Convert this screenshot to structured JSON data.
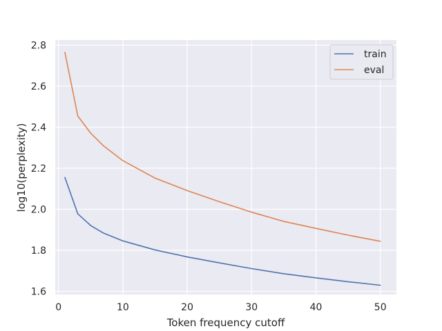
{
  "chart_data": {
    "type": "line",
    "xlabel": "Token frequency cutoff",
    "ylabel": "log10(perplexity)",
    "xlim": [
      -0.5,
      52.5
    ],
    "ylim": [
      1.585,
      2.825
    ],
    "xticks": [
      0,
      10,
      20,
      30,
      40,
      50
    ],
    "yticks": [
      1.6,
      1.8,
      2.0,
      2.2,
      2.4,
      2.6,
      2.8
    ],
    "xtick_labels": [
      "0",
      "10",
      "20",
      "30",
      "40",
      "50"
    ],
    "ytick_labels": [
      "1.6",
      "1.8",
      "2.0",
      "2.2",
      "2.4",
      "2.6",
      "2.8"
    ],
    "grid": true,
    "legend_position": "top-right",
    "series": [
      {
        "name": "train",
        "color": "#4c72b0",
        "x": [
          1,
          3,
          5,
          7,
          10,
          15,
          20,
          25,
          30,
          35,
          40,
          45,
          50
        ],
        "values": [
          2.155,
          1.978,
          1.921,
          1.884,
          1.846,
          1.802,
          1.768,
          1.739,
          1.711,
          1.686,
          1.666,
          1.647,
          1.63
        ]
      },
      {
        "name": "eval",
        "color": "#dd8452",
        "x": [
          1,
          3,
          5,
          7,
          10,
          15,
          20,
          25,
          30,
          35,
          40,
          45,
          50
        ],
        "values": [
          2.765,
          2.455,
          2.371,
          2.309,
          2.237,
          2.152,
          2.091,
          2.037,
          1.986,
          1.941,
          1.907,
          1.874,
          1.844
        ]
      }
    ]
  }
}
